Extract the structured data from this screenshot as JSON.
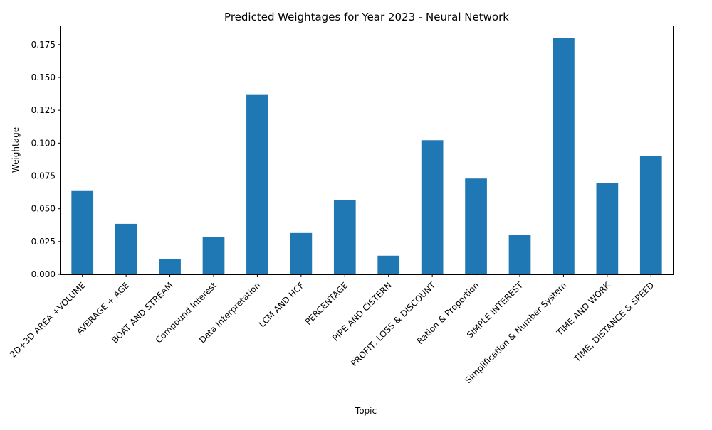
{
  "chart_data": {
    "type": "bar",
    "title": "Predicted Weightages for Year 2023 - Neural Network",
    "xlabel": "Topic",
    "ylabel": "Weightage",
    "categories": [
      "2D+3D AREA +VOLUME",
      "AVERAGE + AGE",
      "BOAT AND STREAM",
      "Compound Interest",
      "Data Interpretation",
      "LCM AND HCF",
      "PERCENTAGE",
      "PIPE AND CISTERN",
      "PROFIT, LOSS & DISCOUNT",
      "Ration & Proportion",
      "SIMPLE INTEREST",
      "Simplification & Number System",
      "TIME AND WORK",
      "TIME, DISTANCE & SPEED"
    ],
    "values": [
      0.0635,
      0.0385,
      0.0115,
      0.0283,
      0.1372,
      0.0315,
      0.0565,
      0.0142,
      0.1022,
      0.073,
      0.03,
      0.1803,
      0.0695,
      0.0902
    ],
    "ylim": [
      0,
      0.189
    ],
    "yticks": [
      "0.000",
      "0.025",
      "0.050",
      "0.075",
      "0.100",
      "0.125",
      "0.150",
      "0.175"
    ],
    "ytick_values": [
      0,
      0.025,
      0.05,
      0.075,
      0.1,
      0.125,
      0.15,
      0.175
    ],
    "bar_color": "#1f77b4",
    "grid": false,
    "legend": "none"
  }
}
